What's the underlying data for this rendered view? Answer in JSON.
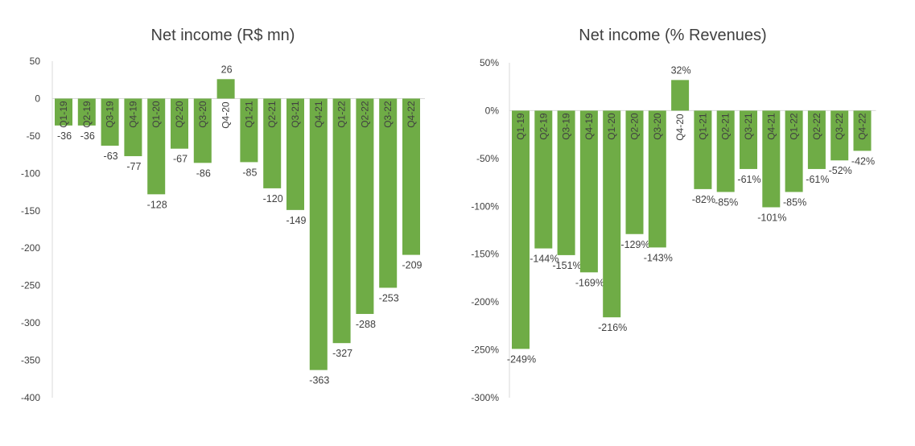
{
  "chart_data": [
    {
      "type": "bar",
      "title": "Net income (R$ mn)",
      "xlabel": "",
      "ylabel": "",
      "categories": [
        "Q1-19",
        "Q2-19",
        "Q3-19",
        "Q4-19",
        "Q1-20",
        "Q2-20",
        "Q3-20",
        "Q4-20",
        "Q1-21",
        "Q2-21",
        "Q3-21",
        "Q4-21",
        "Q1-22",
        "Q2-22",
        "Q3-22",
        "Q4-22"
      ],
      "values": [
        -36,
        -36,
        -63,
        -77,
        -128,
        -67,
        -86,
        26,
        -85,
        -120,
        -149,
        -363,
        -327,
        -288,
        -253,
        -209
      ],
      "value_labels": [
        "-36",
        "-36",
        "-63",
        "-77",
        "-128",
        "-67",
        "-86",
        "26",
        "-85",
        "-120",
        "-149",
        "-363",
        "-327",
        "-288",
        "-253",
        "-209"
      ],
      "ylim": [
        -400,
        50
      ],
      "yticks": [
        50,
        0,
        -50,
        -100,
        -150,
        -200,
        -250,
        -300,
        -350,
        -400
      ],
      "ytick_labels": [
        "50",
        "0",
        "-50",
        "-100",
        "-150",
        "-200",
        "-250",
        "-300",
        "-350",
        "-400"
      ],
      "color": "#6fac46",
      "grid": false
    },
    {
      "type": "bar",
      "title": "Net income (% Revenues)",
      "xlabel": "",
      "ylabel": "",
      "categories": [
        "Q1-19",
        "Q2-19",
        "Q3-19",
        "Q4-19",
        "Q1-20",
        "Q2-20",
        "Q3-20",
        "Q4-20",
        "Q1-21",
        "Q2-21",
        "Q3-21",
        "Q4-21",
        "Q1-22",
        "Q2-22",
        "Q3-22",
        "Q4-22"
      ],
      "values": [
        -249,
        -144,
        -151,
        -169,
        -216,
        -129,
        -143,
        32,
        -82,
        -85,
        -61,
        -101,
        -85,
        -61,
        -52,
        -42
      ],
      "value_labels": [
        "-249%",
        "-144%",
        "-151%",
        "-169%",
        "-216%",
        "-129%",
        "-143%",
        "32%",
        "-82%",
        "-85%",
        "-61%",
        "-101%",
        "-85%",
        "-61%",
        "-52%",
        "-42%"
      ],
      "ylim": [
        -300,
        50
      ],
      "yticks": [
        50,
        0,
        -50,
        -100,
        -150,
        -200,
        -250,
        -300
      ],
      "ytick_labels": [
        "50%",
        "0%",
        "-50%",
        "-100%",
        "-150%",
        "-200%",
        "-250%",
        "-300%"
      ],
      "color": "#6fac46",
      "grid": false
    }
  ]
}
